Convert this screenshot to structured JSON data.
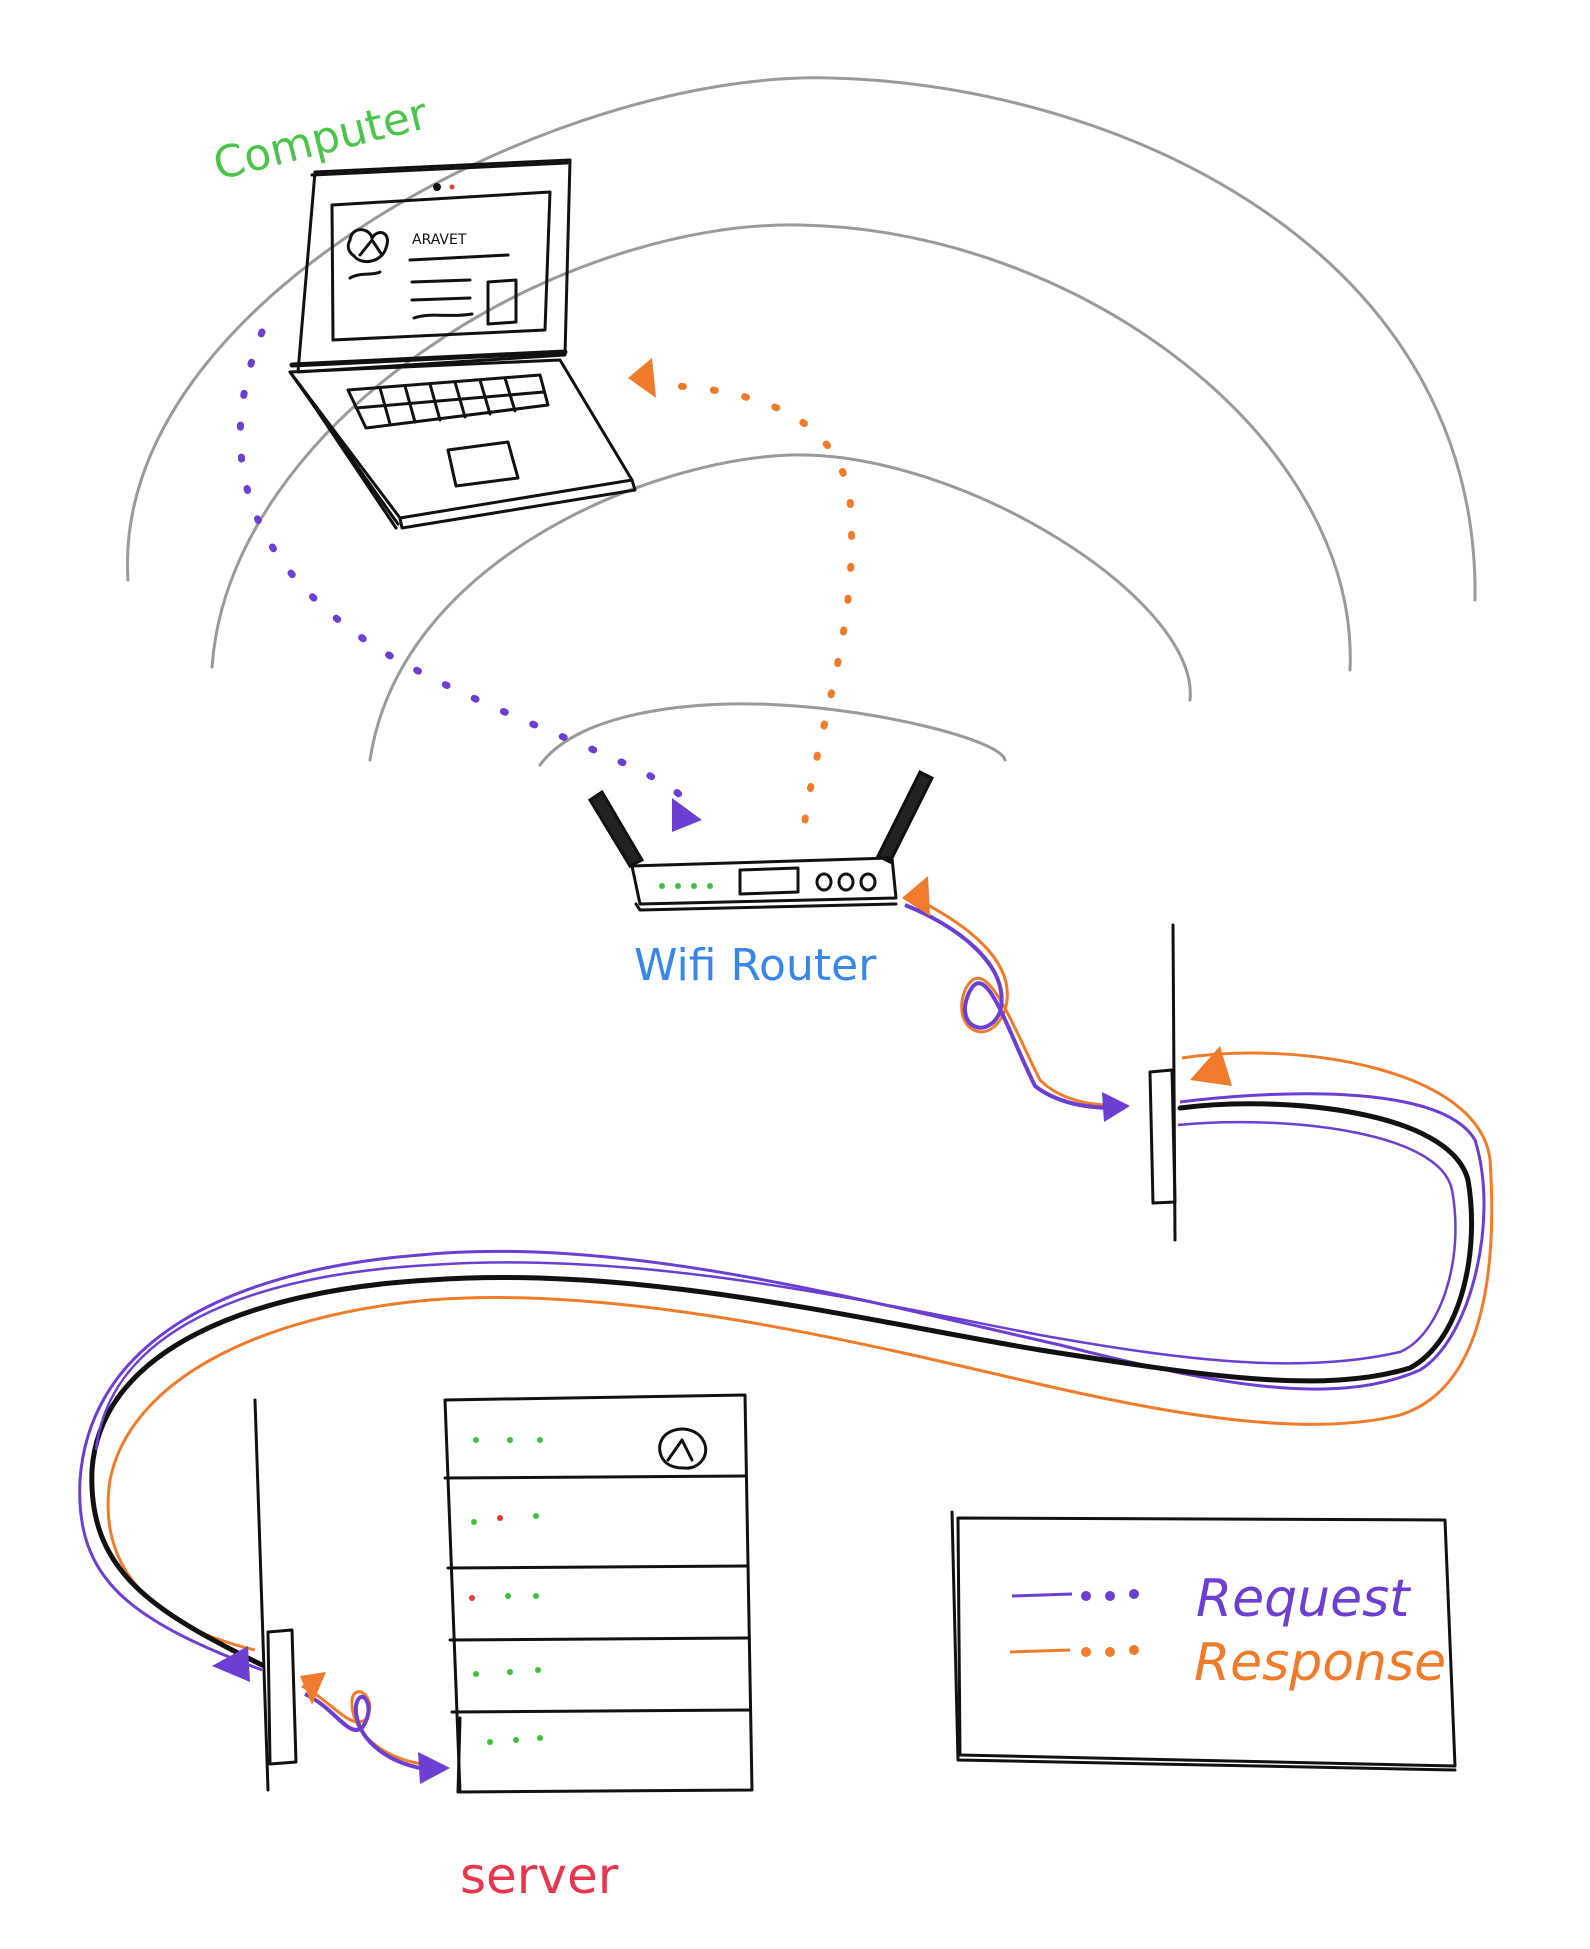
{
  "labels": {
    "computer": "Computer",
    "router": "Wifi Router",
    "server": "server",
    "screen_text": "ARAVET"
  },
  "legend": {
    "items": [
      {
        "label": "Request",
        "color": "#6a3fd1"
      },
      {
        "label": "Response",
        "color": "#f07b2a"
      }
    ]
  },
  "colors": {
    "request": "#6a3fd1",
    "response": "#f07b2a",
    "computer_label": "#4cc44c",
    "router_label": "#3a86e8",
    "server_label": "#e8364e",
    "led_green": "#3fbf3f",
    "led_red": "#e23b3b",
    "waves": "#9a9a9a",
    "ink": "#111111"
  },
  "icons": {
    "app_logo": "app-logo-icon",
    "server_logo": "server-logo-icon"
  }
}
